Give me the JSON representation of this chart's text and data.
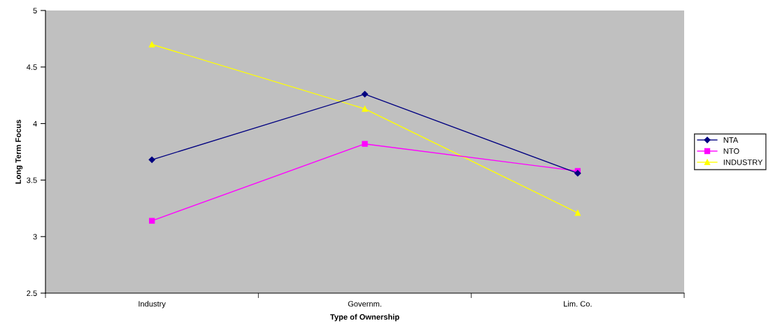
{
  "chart_data": {
    "type": "line",
    "xlabel": "Type of Ownership",
    "ylabel": "Long Term Focus",
    "categories": [
      "Industry",
      "Governm.",
      "Lim. Co."
    ],
    "series": [
      {
        "name": "NTA",
        "color": "#000080",
        "marker": "diamond",
        "values": [
          3.68,
          4.26,
          3.56
        ]
      },
      {
        "name": "NTO",
        "color": "#ff00ff",
        "marker": "square",
        "values": [
          3.14,
          3.82,
          3.58
        ]
      },
      {
        "name": "INDUSTRY",
        "color": "#ffff00",
        "marker": "triangle",
        "values": [
          4.7,
          4.13,
          3.21
        ]
      }
    ],
    "ylim": [
      2.5,
      5
    ],
    "yticks": [
      2.5,
      3,
      3.5,
      4,
      4.5,
      5
    ],
    "grid": false,
    "legend": "right"
  }
}
